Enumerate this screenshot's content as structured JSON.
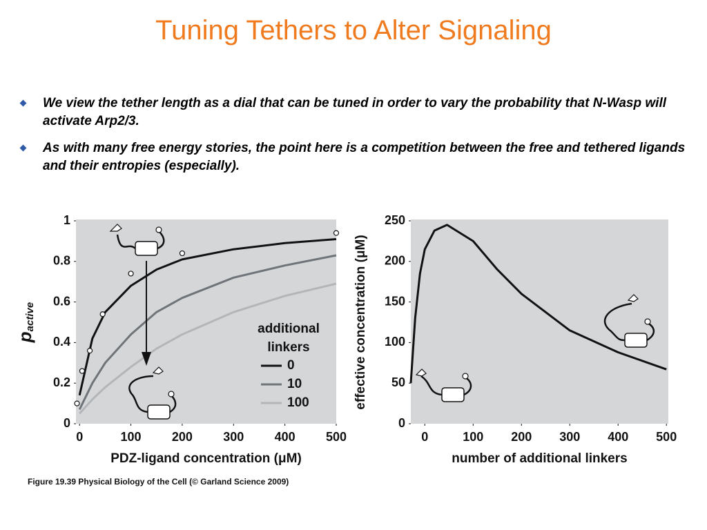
{
  "title": "Tuning Tethers to Alter Signaling",
  "bullets": [
    "We view the tether length as a dial that can be tuned in order to vary the probability that N-Wasp will activate Arp2/3.",
    "As with many free energy stories, the point here is a competition between the free and tethered ligands and their entropies (especially)."
  ],
  "caption": "Figure 19.39  Physical Biology of the Cell (© Garland Science 2009)",
  "chart_data": [
    {
      "type": "line",
      "xlabel": "PDZ-ligand concentration (μM)",
      "ylabel": "p",
      "ylabel_subscript": "active",
      "xlim": [
        -7,
        500
      ],
      "ylim": [
        0,
        1
      ],
      "xticks": [
        0,
        100,
        200,
        300,
        400,
        500
      ],
      "yticks": [
        0,
        0.2,
        0.4,
        0.6,
        0.8,
        1
      ],
      "legend_title": [
        "additional",
        "linkers"
      ],
      "x": [
        0,
        25,
        50,
        100,
        150,
        200,
        300,
        400,
        500
      ],
      "series": [
        {
          "name": "0",
          "color": "#111111",
          "values": [
            0.14,
            0.42,
            0.55,
            0.68,
            0.76,
            0.81,
            0.86,
            0.89,
            0.91
          ]
        },
        {
          "name": "10",
          "color": "#6f7479",
          "values": [
            0.07,
            0.2,
            0.3,
            0.44,
            0.55,
            0.62,
            0.72,
            0.78,
            0.83
          ]
        },
        {
          "name": "100",
          "color": "#b3b6b8",
          "values": [
            0.05,
            0.12,
            0.18,
            0.28,
            0.37,
            0.44,
            0.55,
            0.63,
            0.69
          ]
        }
      ],
      "points": {
        "x": [
          -5,
          5,
          20,
          45,
          100,
          200,
          500
        ],
        "y": [
          0.1,
          0.26,
          0.36,
          0.54,
          0.74,
          0.84,
          0.94
        ]
      }
    },
    {
      "type": "line",
      "xlabel": "number of additional linkers",
      "ylabel": "effective concentration (μM)",
      "xlim": [
        -29,
        504
      ],
      "ylim": [
        0,
        250
      ],
      "xticks": [
        0,
        100,
        200,
        300,
        400,
        500
      ],
      "yticks": [
        0,
        50,
        100,
        150,
        200,
        250
      ],
      "x": [
        -29,
        -20,
        -10,
        0,
        20,
        46,
        100,
        150,
        200,
        300,
        400,
        500
      ],
      "series": [
        {
          "color": "#111111",
          "values": [
            50,
            130,
            185,
            215,
            238,
            245,
            225,
            190,
            160,
            115,
            88,
            67
          ]
        }
      ]
    }
  ]
}
